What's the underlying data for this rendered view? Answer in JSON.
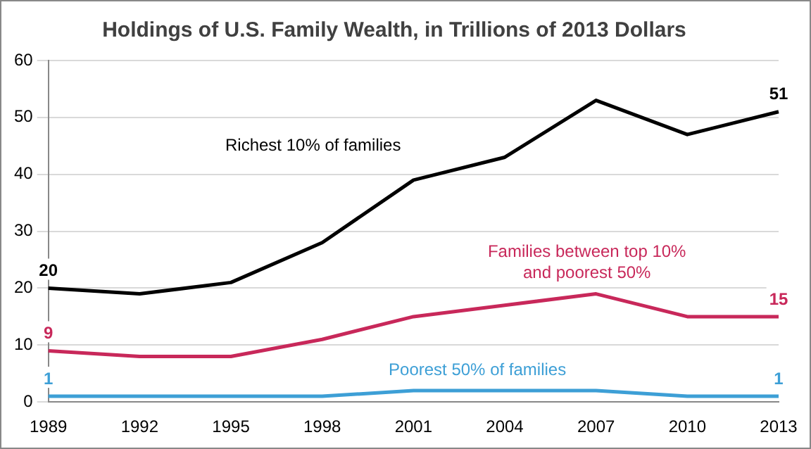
{
  "chart_data": {
    "type": "line",
    "title": "Holdings of U.S. Family Wealth, in Trillions of 2013 Dollars",
    "categories": [
      "1989",
      "1992",
      "1995",
      "1998",
      "2001",
      "2004",
      "2007",
      "2010",
      "2013"
    ],
    "series": [
      {
        "name": "Richest 10% of families",
        "color": "#000000",
        "values": [
          20,
          19,
          21,
          28,
          39,
          43,
          53,
          47,
          51
        ],
        "value_labels": [
          "20",
          null,
          null,
          null,
          null,
          null,
          null,
          null,
          "51"
        ]
      },
      {
        "name": "Families between top 10% and poorest 50%",
        "color": "#c8285a",
        "values": [
          9,
          8,
          8,
          11,
          15,
          17,
          19,
          15,
          15
        ],
        "value_labels": [
          "9",
          null,
          null,
          null,
          null,
          null,
          null,
          null,
          "15"
        ]
      },
      {
        "name": "Poorest 50% of families",
        "color": "#3d9fd6",
        "values": [
          1,
          1,
          1,
          1,
          2,
          2,
          2,
          1,
          1
        ],
        "value_labels": [
          "1",
          null,
          null,
          null,
          null,
          null,
          null,
          null,
          "1"
        ]
      }
    ],
    "ylim": [
      0,
      60
    ],
    "yticks": [
      0,
      10,
      20,
      30,
      40,
      50,
      60
    ],
    "grid": "y",
    "legend": false,
    "marker": "none",
    "line_style": "solid"
  }
}
